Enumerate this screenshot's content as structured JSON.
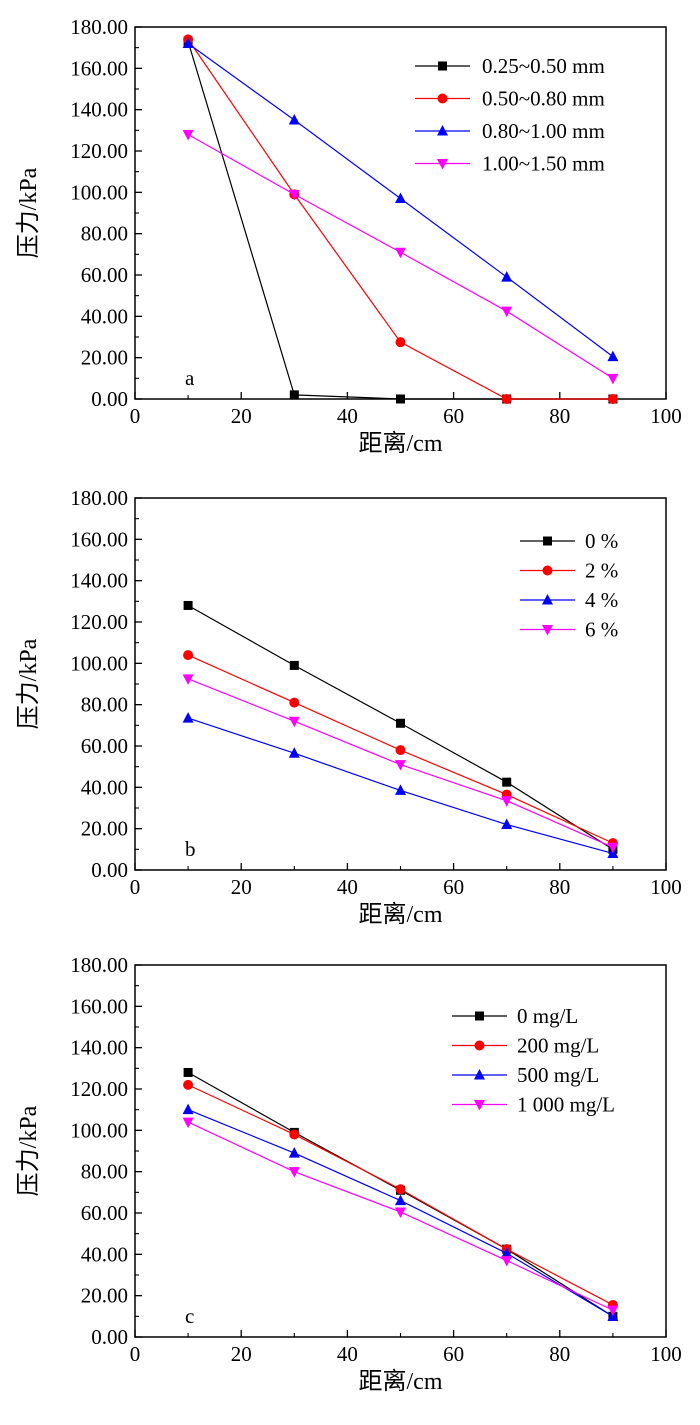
{
  "colors": {
    "black": "#000000",
    "red": "#ff0000",
    "blue": "#0000ff",
    "magenta": "#ff00ff"
  },
  "chart_data": [
    {
      "type": "line",
      "panel": "a",
      "xlabel": "距离/cm",
      "ylabel": "压力/kPa",
      "xlim": [
        0,
        100
      ],
      "ylim": [
        0,
        180
      ],
      "x_ticks": [
        "0",
        "20",
        "40",
        "60",
        "80",
        "100"
      ],
      "y_ticks": [
        "0.00",
        "20.00",
        "40.00",
        "60.00",
        "80.00",
        "100.00",
        "120.00",
        "140.00",
        "160.00",
        "180.00"
      ],
      "legend_position": "top-right",
      "x": [
        10,
        30,
        50,
        70,
        90
      ],
      "series": [
        {
          "name": "0.25~0.50 mm",
          "color": "#000000",
          "marker": "square",
          "values": [
            173,
            2,
            0,
            0,
            0
          ]
        },
        {
          "name": "0.50~0.80 mm",
          "color": "#ff0000",
          "marker": "circle",
          "values": [
            174,
            99,
            27.5,
            0,
            0
          ]
        },
        {
          "name": "0.80~1.00 mm",
          "color": "#0000ff",
          "marker": "triangle-up",
          "values": [
            172,
            135,
            97,
            59,
            20.5
          ]
        },
        {
          "name": "1.00~1.50 mm",
          "color": "#ff00ff",
          "marker": "triangle-down",
          "values": [
            128,
            99,
            71,
            42.5,
            10
          ]
        }
      ]
    },
    {
      "type": "line",
      "panel": "b",
      "xlabel": "距离/cm",
      "ylabel": "压力/kPa",
      "xlim": [
        0,
        100
      ],
      "ylim": [
        0,
        180
      ],
      "x_ticks": [
        "0",
        "20",
        "40",
        "60",
        "80",
        "100"
      ],
      "y_ticks": [
        "0.00",
        "20.00",
        "40.00",
        "60.00",
        "80.00",
        "100.00",
        "120.00",
        "140.00",
        "160.00",
        "180.00"
      ],
      "legend_position": "top-right",
      "x": [
        10,
        30,
        50,
        70,
        90
      ],
      "series": [
        {
          "name": "0 %",
          "color": "#000000",
          "marker": "square",
          "values": [
            128,
            99,
            71,
            42.5,
            10
          ]
        },
        {
          "name": "2 %",
          "color": "#ff0000",
          "marker": "circle",
          "values": [
            104,
            81,
            58,
            36.5,
            13
          ]
        },
        {
          "name": "4 %",
          "color": "#0000ff",
          "marker": "triangle-up",
          "values": [
            73.5,
            56.5,
            38.5,
            22,
            8
          ]
        },
        {
          "name": "6 %",
          "color": "#ff00ff",
          "marker": "triangle-down",
          "values": [
            92.5,
            72,
            51,
            33.5,
            11
          ]
        }
      ]
    },
    {
      "type": "line",
      "panel": "c",
      "xlabel": "距离/cm",
      "ylabel": "压力/kPa",
      "xlim": [
        0,
        100
      ],
      "ylim": [
        0,
        180
      ],
      "x_ticks": [
        "0",
        "20",
        "40",
        "60",
        "80",
        "100"
      ],
      "y_ticks": [
        "0.00",
        "20.00",
        "40.00",
        "60.00",
        "80.00",
        "100.00",
        "120.00",
        "140.00",
        "160.00",
        "180.00"
      ],
      "legend_position": "top-right",
      "x": [
        10,
        30,
        50,
        70,
        90
      ],
      "series": [
        {
          "name": "0 mg/L",
          "color": "#000000",
          "marker": "square",
          "values": [
            128,
            99,
            71,
            42.5,
            10
          ]
        },
        {
          "name": "200 mg/L",
          "color": "#ff0000",
          "marker": "circle",
          "values": [
            122,
            98,
            71.5,
            42.5,
            15.5
          ]
        },
        {
          "name": "500 mg/L",
          "color": "#0000ff",
          "marker": "triangle-up",
          "values": [
            110,
            89,
            66,
            40.5,
            10
          ]
        },
        {
          "name": "1 000 mg/L",
          "color": "#ff00ff",
          "marker": "triangle-down",
          "values": [
            104,
            80,
            60.5,
            37,
            13
          ]
        }
      ]
    }
  ]
}
